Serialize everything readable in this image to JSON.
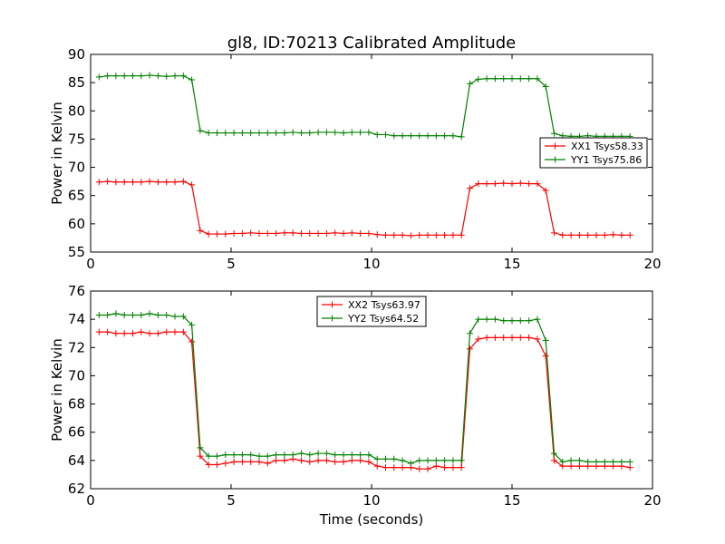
{
  "figure": {
    "title": "gl8, ID:70213 Calibrated Amplitude",
    "xlabel": "Time (seconds)"
  },
  "chart_data": [
    {
      "type": "line",
      "ylabel": "Power in Kelvin",
      "xlim": [
        0,
        20
      ],
      "ylim": [
        55,
        90
      ],
      "xticks": [
        "0",
        "5",
        "10",
        "15",
        "20"
      ],
      "yticks": [
        "55",
        "60",
        "65",
        "70",
        "75",
        "80",
        "85",
        "90"
      ],
      "grid": false,
      "legend_position": "center-right",
      "x": [
        0.3,
        0.6,
        0.9,
        1.2,
        1.5,
        1.8,
        2.1,
        2.4,
        2.7,
        3.0,
        3.3,
        3.6,
        3.9,
        4.2,
        4.5,
        4.8,
        5.1,
        5.4,
        5.7,
        6.0,
        6.3,
        6.6,
        6.9,
        7.2,
        7.5,
        7.8,
        8.1,
        8.4,
        8.7,
        9.0,
        9.3,
        9.6,
        9.9,
        10.2,
        10.5,
        10.8,
        11.1,
        11.4,
        11.7,
        12.0,
        12.3,
        12.6,
        12.9,
        13.2,
        13.5,
        13.8,
        14.1,
        14.4,
        14.7,
        15.0,
        15.3,
        15.6,
        15.9,
        16.2,
        16.5,
        16.8,
        17.1,
        17.4,
        17.7,
        18.0,
        18.3,
        18.6,
        18.9,
        19.2
      ],
      "series": [
        {
          "name": "XX1 Tsys58.33",
          "color": "#ff0000",
          "values": [
            67.4,
            67.5,
            67.4,
            67.4,
            67.4,
            67.4,
            67.5,
            67.4,
            67.4,
            67.4,
            67.5,
            66.9,
            58.8,
            58.2,
            58.2,
            58.2,
            58.3,
            58.3,
            58.4,
            58.3,
            58.3,
            58.3,
            58.4,
            58.4,
            58.3,
            58.3,
            58.3,
            58.3,
            58.4,
            58.3,
            58.4,
            58.3,
            58.3,
            58.1,
            58.0,
            58.0,
            58.0,
            57.9,
            58.0,
            58.0,
            58.0,
            58.0,
            58.0,
            58.0,
            66.3,
            67.1,
            67.1,
            67.1,
            67.2,
            67.1,
            67.2,
            67.1,
            67.1,
            65.9,
            58.4,
            58.0,
            58.0,
            58.0,
            58.0,
            58.0,
            58.0,
            58.1,
            58.0,
            58.0
          ]
        },
        {
          "name": "YY1 Tsys75.86",
          "color": "#008000",
          "values": [
            86.0,
            86.2,
            86.2,
            86.2,
            86.2,
            86.2,
            86.3,
            86.2,
            86.1,
            86.2,
            86.2,
            85.5,
            76.5,
            76.1,
            76.1,
            76.1,
            76.1,
            76.1,
            76.1,
            76.1,
            76.1,
            76.1,
            76.1,
            76.2,
            76.1,
            76.1,
            76.2,
            76.2,
            76.2,
            76.1,
            76.2,
            76.2,
            76.2,
            75.8,
            75.8,
            75.6,
            75.6,
            75.6,
            75.6,
            75.6,
            75.6,
            75.6,
            75.6,
            75.4,
            84.8,
            85.6,
            85.7,
            85.7,
            85.7,
            85.7,
            85.7,
            85.7,
            85.7,
            84.3,
            76.0,
            75.6,
            75.5,
            75.5,
            75.6,
            75.5,
            75.5,
            75.5,
            75.5,
            75.5
          ]
        }
      ]
    },
    {
      "type": "line",
      "ylabel": "Power in Kelvin",
      "xlim": [
        0,
        20
      ],
      "ylim": [
        62,
        76
      ],
      "xticks": [
        "0",
        "5",
        "10",
        "15",
        "20"
      ],
      "yticks": [
        "62",
        "64",
        "66",
        "68",
        "70",
        "72",
        "74",
        "76"
      ],
      "grid": false,
      "legend_position": "top-center",
      "x": [
        0.3,
        0.6,
        0.9,
        1.2,
        1.5,
        1.8,
        2.1,
        2.4,
        2.7,
        3.0,
        3.3,
        3.6,
        3.9,
        4.2,
        4.5,
        4.8,
        5.1,
        5.4,
        5.7,
        6.0,
        6.3,
        6.6,
        6.9,
        7.2,
        7.5,
        7.8,
        8.1,
        8.4,
        8.7,
        9.0,
        9.3,
        9.6,
        9.9,
        10.2,
        10.5,
        10.8,
        11.1,
        11.4,
        11.7,
        12.0,
        12.3,
        12.6,
        12.9,
        13.2,
        13.5,
        13.8,
        14.1,
        14.4,
        14.7,
        15.0,
        15.3,
        15.6,
        15.9,
        16.2,
        16.5,
        16.8,
        17.1,
        17.4,
        17.7,
        18.0,
        18.3,
        18.6,
        18.9,
        19.2
      ],
      "series": [
        {
          "name": "XX2 Tsys63.97",
          "color": "#ff0000",
          "values": [
            73.1,
            73.1,
            73.0,
            73.0,
            73.0,
            73.1,
            73.0,
            73.0,
            73.1,
            73.1,
            73.1,
            72.4,
            64.3,
            63.7,
            63.7,
            63.8,
            63.9,
            63.9,
            63.9,
            63.9,
            63.8,
            64.0,
            64.0,
            64.1,
            64.0,
            63.9,
            64.0,
            64.0,
            63.9,
            63.9,
            64.0,
            64.0,
            63.9,
            63.6,
            63.5,
            63.5,
            63.5,
            63.5,
            63.4,
            63.4,
            63.6,
            63.5,
            63.5,
            63.5,
            71.9,
            72.6,
            72.7,
            72.7,
            72.7,
            72.7,
            72.7,
            72.7,
            72.6,
            71.4,
            64.0,
            63.6,
            63.6,
            63.6,
            63.6,
            63.6,
            63.6,
            63.6,
            63.6,
            63.5
          ]
        },
        {
          "name": "YY2 Tsys64.52",
          "color": "#008000",
          "values": [
            74.3,
            74.3,
            74.4,
            74.3,
            74.3,
            74.3,
            74.4,
            74.3,
            74.3,
            74.2,
            74.2,
            73.6,
            64.9,
            64.3,
            64.3,
            64.4,
            64.4,
            64.4,
            64.4,
            64.3,
            64.3,
            64.4,
            64.4,
            64.4,
            64.5,
            64.4,
            64.5,
            64.5,
            64.4,
            64.4,
            64.4,
            64.4,
            64.4,
            64.1,
            64.1,
            64.1,
            64.0,
            63.8,
            64.0,
            64.0,
            64.0,
            64.0,
            64.0,
            64.0,
            73.0,
            74.0,
            74.0,
            74.0,
            73.9,
            73.9,
            73.9,
            73.9,
            74.0,
            72.5,
            64.5,
            63.9,
            64.0,
            64.0,
            63.9,
            63.9,
            63.9,
            63.9,
            63.9,
            63.9
          ]
        }
      ]
    }
  ]
}
